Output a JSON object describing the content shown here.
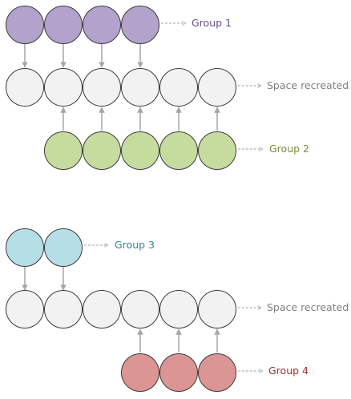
{
  "colors": {
    "group1_fill": "#B3A2CC",
    "group2_fill": "#C6DB9E",
    "group3_fill": "#B6DEE7",
    "group4_fill": "#DB9594",
    "empty_fill": "#F2F2F2",
    "outline": "#3A3A3A",
    "arrow": "#A6A6A6",
    "group1_text": "#6B4E8C",
    "group2_text": "#76923C",
    "group3_text": "#31849B",
    "group4_text": "#943634",
    "space_text": "#7F7F7F"
  },
  "labels": {
    "group1": "Group 1",
    "space_top": "Space recreated",
    "group2": "Group 2",
    "group3": "Group 3",
    "space_bottom": "Space recreated",
    "group4": "Group 4"
  }
}
